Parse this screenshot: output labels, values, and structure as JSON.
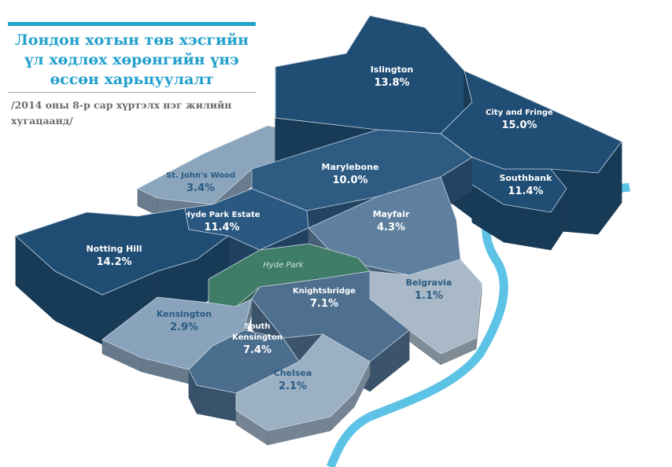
{
  "title": "Лондон хотын төв хэсгийн үл хөдлөх хөрөнгийн үнэ өссөн харьцуулалт",
  "subtitle": "/2014 оны 8-р сар хүртэлх нэг жилийн хугацаанд/",
  "colors": {
    "accent": "#1fa3c9",
    "river": "#5cc3e6",
    "park": "#3f7d68"
  },
  "park": {
    "name": "Hyde Park"
  },
  "regions": [
    {
      "name": "Islington",
      "value": "13.8%",
      "color": "#1f4d74"
    },
    {
      "name": "City and Fringe",
      "value": "15.0%",
      "color": "#1f4d74"
    },
    {
      "name": "Southbank",
      "value": "11.4%",
      "color": "#1f4d74"
    },
    {
      "name": "Marylebone",
      "value": "10.0%",
      "color": "#2d5b82"
    },
    {
      "name": "St. John's Wood",
      "value": "3.4%",
      "color": "#8aa5bc"
    },
    {
      "name": "Hyde Park Estate",
      "value": "11.4%",
      "color": "#2a5880"
    },
    {
      "name": "Mayfair",
      "value": "4.3%",
      "color": "#5f7f9e"
    },
    {
      "name": "Notting Hill",
      "value": "14.2%",
      "color": "#1f4d74"
    },
    {
      "name": "Belgravia",
      "value": "1.1%",
      "color": "#a9b9c7"
    },
    {
      "name": "Knightsbridge",
      "value": "7.1%",
      "color": "#4f6f8f"
    },
    {
      "name": "Kensington",
      "value": "2.9%",
      "color": "#88a3bb"
    },
    {
      "name": "South Kensington",
      "value": "7.4%",
      "color": "#4b6d8e"
    },
    {
      "name": "Chelsea",
      "value": "2.1%",
      "color": "#9bb0c3"
    }
  ]
}
